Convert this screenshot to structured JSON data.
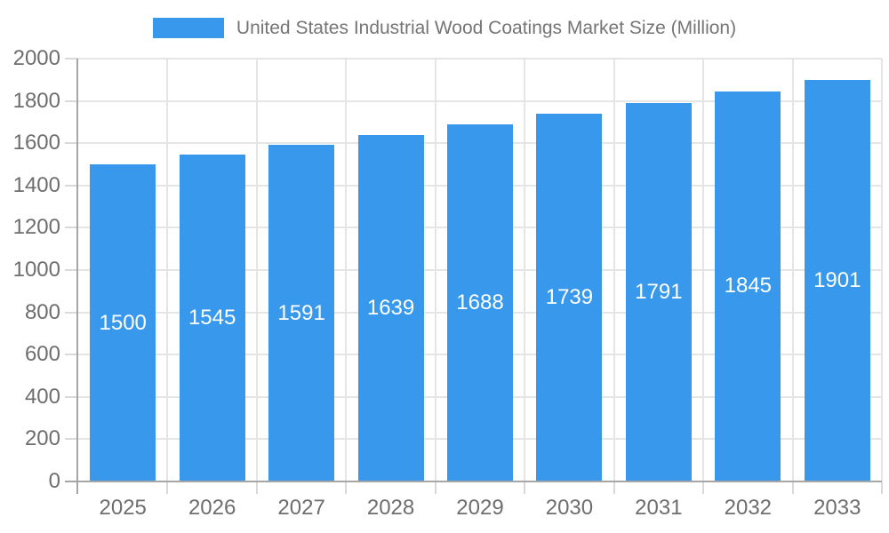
{
  "legend": {
    "label": "United States Industrial Wood Coatings Market Size (Million)"
  },
  "chart_data": {
    "type": "bar",
    "title": "United States Industrial Wood Coatings Market Size (Million)",
    "categories": [
      "2025",
      "2026",
      "2027",
      "2028",
      "2029",
      "2030",
      "2031",
      "2032",
      "2033"
    ],
    "values": [
      1500,
      1545,
      1591,
      1639,
      1688,
      1739,
      1791,
      1845,
      1901
    ],
    "xlabel": "",
    "ylabel": "",
    "ylim": [
      0,
      2000
    ],
    "ytick_step": 200,
    "grid": true,
    "legend_position": "top",
    "value_labels_inside_bars": true,
    "colors": {
      "bar": "#3899EC",
      "value_label": "#FFFFFF",
      "axis_text": "#6E6E6E",
      "legend_text": "#757575",
      "axis_line": "#A6A6A6",
      "tick": "#D9D9D9",
      "gridline": "#E5E5E5"
    }
  }
}
